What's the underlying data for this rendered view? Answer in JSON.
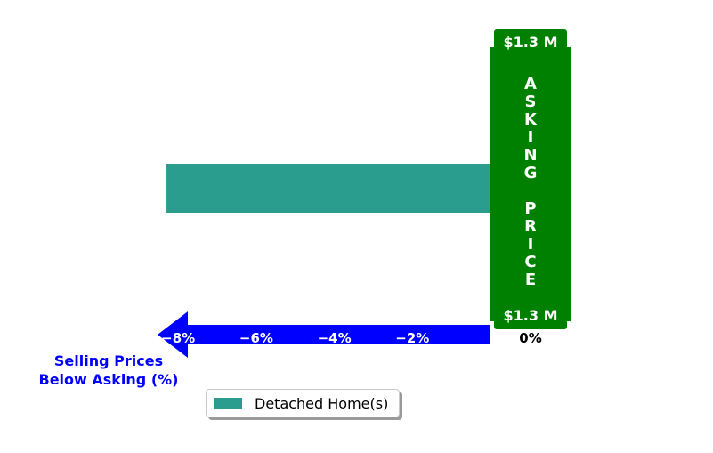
{
  "chart_data": {
    "type": "bar",
    "orientation": "horizontal",
    "series": [
      {
        "name": "Detached Home(s)",
        "values": [
          -8.3
        ],
        "color": "#2a9d8f"
      }
    ],
    "xlim": [
      -8.3,
      0
    ],
    "xticks": [
      -8,
      -6,
      -4,
      -2,
      0
    ],
    "xtick_labels": [
      "−8%",
      "−6%",
      "−4%",
      "−2%",
      "0%"
    ],
    "xlabel": "Selling Prices\nBelow Asking (%)",
    "xlabel_line1": "Selling Prices",
    "xlabel_line2": "Below Asking (%)",
    "asking_price_top": "$1.3 M",
    "asking_price_bottom": "$1.3 M",
    "asking_price_label": "ASKING PRICE",
    "legend_placement": "lower-center",
    "grid": false,
    "colors": {
      "axis_arrow": "#0000ff",
      "asking_box": "#008000",
      "bar": "#2a9d8f"
    }
  }
}
